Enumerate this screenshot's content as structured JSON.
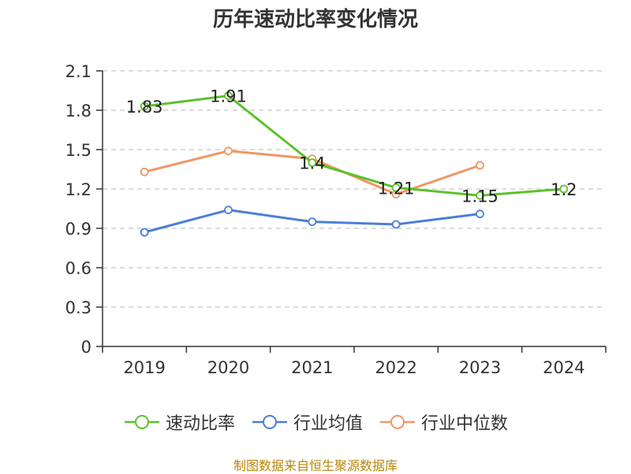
{
  "chart_data": {
    "type": "line",
    "title": "历年速动比率变化情况",
    "categories": [
      "2019",
      "2020",
      "2021",
      "2022",
      "2023",
      "2024"
    ],
    "ylim": [
      0,
      2.1
    ],
    "yticks": [
      "0",
      "0.3",
      "0.6",
      "0.9",
      "1.2",
      "1.5",
      "1.8",
      "2.1"
    ],
    "grid": true,
    "legend_position": "bottom",
    "series": [
      {
        "name": "速动比率",
        "color": "#5cc12c",
        "values": [
          1.83,
          1.91,
          1.4,
          1.21,
          1.15,
          1.2
        ],
        "labels": [
          "1.83",
          "1.91",
          "1.4",
          "1.21",
          "1.15",
          "1.2"
        ]
      },
      {
        "name": "行业均值",
        "color": "#4b7fd6",
        "values": [
          0.87,
          1.04,
          0.95,
          0.93,
          1.01,
          null
        ]
      },
      {
        "name": "行业中位数",
        "color": "#f39561",
        "values": [
          1.33,
          1.49,
          1.43,
          1.16,
          1.38,
          null
        ]
      }
    ]
  },
  "source": "制图数据来自恒生聚源数据库"
}
